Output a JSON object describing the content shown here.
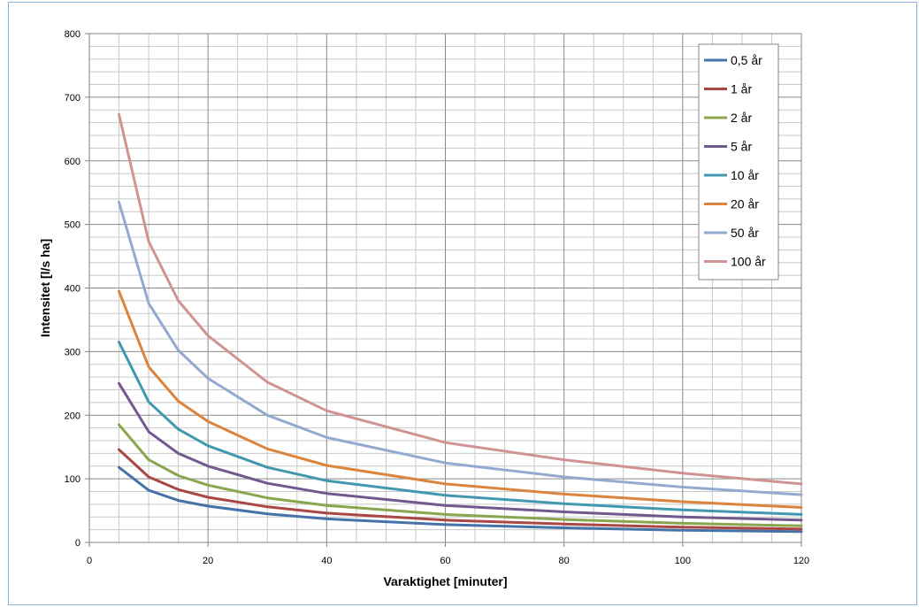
{
  "chart_data": {
    "type": "line",
    "xlabel": "Varaktighet [minuter]",
    "ylabel": "Intensitet [l/s ha]",
    "xlim": [
      0,
      120
    ],
    "ylim": [
      0,
      800
    ],
    "x_ticks": [
      0,
      20,
      40,
      60,
      80,
      100,
      120
    ],
    "y_ticks": [
      0,
      100,
      200,
      300,
      400,
      500,
      600,
      700,
      800
    ],
    "x_minor_step": 5,
    "y_minor_step": 20,
    "grid": true,
    "legend_position": "top-right",
    "x": [
      5,
      10,
      15,
      20,
      30,
      40,
      60,
      80,
      100,
      120
    ],
    "series": [
      {
        "name": "0,5 år",
        "color": "#4572a7",
        "values": [
          118,
          82,
          66,
          57,
          45,
          37,
          28,
          23,
          19,
          17
        ]
      },
      {
        "name": "1 år",
        "color": "#aa4643",
        "values": [
          146,
          103,
          83,
          71,
          56,
          46,
          35,
          29,
          24,
          21
        ]
      },
      {
        "name": "2 år",
        "color": "#89a54e",
        "values": [
          185,
          130,
          105,
          90,
          70,
          58,
          44,
          36,
          30,
          26
        ]
      },
      {
        "name": "5 år",
        "color": "#71588f",
        "values": [
          250,
          174,
          140,
          120,
          93,
          77,
          58,
          48,
          40,
          35
        ]
      },
      {
        "name": "10 år",
        "color": "#4198af",
        "values": [
          315,
          221,
          178,
          152,
          118,
          97,
          74,
          61,
          51,
          44
        ]
      },
      {
        "name": "20 år",
        "color": "#db843d",
        "values": [
          395,
          276,
          222,
          190,
          147,
          121,
          92,
          76,
          64,
          55
        ]
      },
      {
        "name": "50 år",
        "color": "#93a9cf",
        "values": [
          535,
          376,
          302,
          258,
          200,
          165,
          125,
          103,
          87,
          75
        ]
      },
      {
        "name": "100 år",
        "color": "#d19392",
        "values": [
          673,
          473,
          380,
          325,
          252,
          207,
          157,
          130,
          109,
          92
        ]
      }
    ]
  }
}
